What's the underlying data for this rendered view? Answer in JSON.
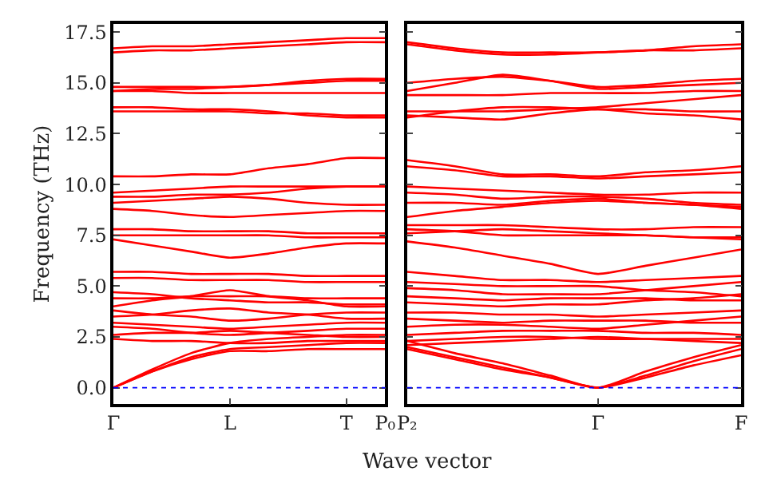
{
  "chart_data": [
    {
      "type": "line",
      "ylabel": "Frequency (THz)",
      "xlabel": "Wave vector",
      "ylim": [
        -0.8,
        17.9
      ],
      "tick_labels": "xy",
      "line_style": "solid",
      "marker": "none",
      "categories": [
        "Γ",
        null,
        null,
        "L",
        null,
        null,
        "T",
        "P₀"
      ],
      "yticks": [
        {
          "value": 0,
          "label": "0.0"
        },
        {
          "value": 2.5,
          "label": "2.5"
        },
        {
          "value": 5,
          "label": "5.0"
        },
        {
          "value": 7.5,
          "label": "7.5"
        },
        {
          "value": 10,
          "label": "10.0"
        },
        {
          "value": 12.5,
          "label": "12.5"
        },
        {
          "value": 15,
          "label": "15.0"
        },
        {
          "value": 17.5,
          "label": "17.5"
        }
      ],
      "ref_lines": [
        {
          "axis": "y",
          "value": 0,
          "label": null,
          "color": "#0000ff",
          "line_style": "dotted"
        }
      ],
      "series": [
        {
          "color": "#ff0000",
          "values": [
            16.5,
            16.6,
            16.6,
            16.7,
            16.8,
            16.9,
            17.0,
            17.0
          ]
        },
        {
          "color": "#ff0000",
          "values": [
            16.7,
            16.8,
            16.8,
            16.9,
            17.0,
            17.1,
            17.2,
            17.2
          ]
        },
        {
          "color": "#ff0000",
          "values": [
            14.8,
            14.8,
            14.8,
            14.8,
            14.9,
            15.1,
            15.2,
            15.2
          ]
        },
        {
          "color": "#ff0000",
          "values": [
            14.6,
            14.7,
            14.7,
            14.8,
            14.9,
            15.0,
            15.1,
            15.1
          ]
        },
        {
          "color": "#ff0000",
          "values": [
            14.6,
            14.6,
            14.5,
            14.5,
            14.5,
            14.5,
            14.5,
            14.5
          ]
        },
        {
          "color": "#ff0000",
          "values": [
            13.8,
            13.8,
            13.7,
            13.7,
            13.6,
            13.4,
            13.3,
            13.3
          ]
        },
        {
          "color": "#ff0000",
          "values": [
            13.6,
            13.6,
            13.6,
            13.6,
            13.5,
            13.5,
            13.4,
            13.4
          ]
        },
        {
          "color": "#ff0000",
          "values": [
            10.4,
            10.4,
            10.5,
            10.5,
            10.8,
            11.0,
            11.3,
            11.3
          ]
        },
        {
          "color": "#ff0000",
          "values": [
            9.6,
            9.7,
            9.8,
            9.9,
            9.9,
            9.9,
            9.9,
            9.9
          ]
        },
        {
          "color": "#ff0000",
          "values": [
            9.4,
            9.4,
            9.5,
            9.5,
            9.6,
            9.8,
            9.9,
            9.9
          ]
        },
        {
          "color": "#ff0000",
          "values": [
            9.1,
            9.2,
            9.3,
            9.4,
            9.3,
            9.1,
            9.0,
            9.0
          ]
        },
        {
          "color": "#ff0000",
          "values": [
            8.8,
            8.7,
            8.5,
            8.4,
            8.5,
            8.6,
            8.7,
            8.7
          ]
        },
        {
          "color": "#ff0000",
          "values": [
            7.8,
            7.8,
            7.7,
            7.7,
            7.7,
            7.6,
            7.6,
            7.6
          ]
        },
        {
          "color": "#ff0000",
          "values": [
            7.5,
            7.5,
            7.5,
            7.5,
            7.5,
            7.4,
            7.4,
            7.4
          ]
        },
        {
          "color": "#ff0000",
          "values": [
            7.3,
            7.0,
            6.7,
            6.4,
            6.6,
            6.9,
            7.1,
            7.1
          ]
        },
        {
          "color": "#ff0000",
          "values": [
            5.7,
            5.7,
            5.6,
            5.6,
            5.6,
            5.5,
            5.5,
            5.5
          ]
        },
        {
          "color": "#ff0000",
          "values": [
            5.4,
            5.4,
            5.3,
            5.3,
            5.3,
            5.2,
            5.2,
            5.2
          ]
        },
        {
          "color": "#ff0000",
          "values": [
            4.7,
            4.6,
            4.4,
            4.3,
            4.2,
            4.2,
            4.1,
            4.1
          ]
        },
        {
          "color": "#ff0000",
          "values": [
            4.4,
            4.4,
            4.5,
            4.5,
            4.5,
            4.4,
            4.4,
            4.4
          ]
        },
        {
          "color": "#ff0000",
          "values": [
            4.0,
            4.3,
            4.5,
            4.8,
            4.5,
            4.3,
            4.0,
            4.0
          ]
        },
        {
          "color": "#ff0000",
          "values": [
            3.8,
            3.6,
            3.5,
            3.3,
            3.4,
            3.6,
            3.7,
            3.7
          ]
        },
        {
          "color": "#ff0000",
          "values": [
            3.5,
            3.6,
            3.8,
            3.9,
            3.7,
            3.6,
            3.4,
            3.4
          ]
        },
        {
          "color": "#ff0000",
          "values": [
            3.2,
            3.1,
            3.0,
            2.9,
            3.0,
            3.1,
            3.2,
            3.2
          ]
        },
        {
          "color": "#ff0000",
          "values": [
            3.0,
            2.9,
            2.7,
            2.6,
            2.7,
            2.8,
            2.9,
            2.9
          ]
        },
        {
          "color": "#ff0000",
          "values": [
            2.6,
            2.7,
            2.7,
            2.8,
            2.7,
            2.6,
            2.5,
            2.5
          ]
        },
        {
          "color": "#ff0000",
          "values": [
            2.4,
            2.3,
            2.3,
            2.2,
            2.2,
            2.3,
            2.3,
            2.3
          ]
        },
        {
          "color": "#ff0000",
          "values": [
            0,
            0.8,
            1.4,
            1.8,
            1.8,
            1.9,
            1.9,
            1.9
          ]
        },
        {
          "color": "#ff0000",
          "values": [
            0,
            0.8,
            1.5,
            1.9,
            2.0,
            2.1,
            2.2,
            2.2
          ]
        },
        {
          "color": "#ff0000",
          "values": [
            0,
            0.9,
            1.7,
            2.2,
            2.4,
            2.5,
            2.6,
            2.6
          ]
        }
      ]
    },
    {
      "type": "line",
      "ylim": [
        -0.8,
        17.9
      ],
      "tick_labels": "x",
      "line_style": "solid",
      "marker": "none",
      "categories": [
        "P₂",
        null,
        null,
        null,
        "Γ",
        null,
        null,
        "F"
      ],
      "yticks": [
        {
          "value": 0,
          "label": null
        },
        {
          "value": 2.5,
          "label": null
        },
        {
          "value": 5,
          "label": null
        },
        {
          "value": 7.5,
          "label": null
        },
        {
          "value": 10,
          "label": null
        },
        {
          "value": 12.5,
          "label": null
        },
        {
          "value": 15,
          "label": null
        },
        {
          "value": 17.5,
          "label": null
        }
      ],
      "ref_lines": [
        {
          "axis": "y",
          "value": 0,
          "label": null,
          "color": "#0000ff",
          "line_style": "dotted"
        }
      ],
      "series": [
        {
          "color": "#ff0000",
          "values": [
            17.0,
            16.7,
            16.5,
            16.5,
            16.5,
            16.6,
            16.6,
            16.7
          ]
        },
        {
          "color": "#ff0000",
          "values": [
            16.9,
            16.6,
            16.4,
            16.4,
            16.5,
            16.6,
            16.8,
            16.9
          ]
        },
        {
          "color": "#ff0000",
          "values": [
            15.0,
            15.2,
            15.3,
            15.1,
            14.8,
            14.9,
            15.1,
            15.2
          ]
        },
        {
          "color": "#ff0000",
          "values": [
            14.6,
            15.0,
            15.4,
            15.1,
            14.7,
            14.8,
            14.9,
            15.0
          ]
        },
        {
          "color": "#ff0000",
          "values": [
            14.4,
            14.4,
            14.4,
            14.5,
            14.5,
            14.5,
            14.6,
            14.6
          ]
        },
        {
          "color": "#ff0000",
          "values": [
            13.6,
            13.6,
            13.6,
            13.7,
            13.8,
            14.0,
            14.2,
            14.4
          ]
        },
        {
          "color": "#ff0000",
          "values": [
            13.4,
            13.3,
            13.2,
            13.5,
            13.7,
            13.5,
            13.4,
            13.2
          ]
        },
        {
          "color": "#ff0000",
          "values": [
            13.3,
            13.6,
            13.8,
            13.8,
            13.7,
            13.7,
            13.6,
            13.6
          ]
        },
        {
          "color": "#ff0000",
          "values": [
            11.2,
            10.9,
            10.5,
            10.5,
            10.4,
            10.6,
            10.7,
            10.9
          ]
        },
        {
          "color": "#ff0000",
          "values": [
            10.9,
            10.7,
            10.4,
            10.4,
            10.3,
            10.4,
            10.5,
            10.6
          ]
        },
        {
          "color": "#ff0000",
          "values": [
            9.9,
            9.8,
            9.7,
            9.6,
            9.5,
            9.5,
            9.6,
            9.6
          ]
        },
        {
          "color": "#ff0000",
          "values": [
            9.6,
            9.5,
            9.3,
            9.4,
            9.4,
            9.3,
            9.1,
            9.0
          ]
        },
        {
          "color": "#ff0000",
          "values": [
            9.1,
            9.1,
            9.0,
            9.2,
            9.3,
            9.1,
            9.0,
            8.8
          ]
        },
        {
          "color": "#ff0000",
          "values": [
            8.4,
            8.7,
            8.9,
            9.1,
            9.2,
            9.1,
            9.0,
            8.9
          ]
        },
        {
          "color": "#ff0000",
          "values": [
            8.0,
            8.0,
            8.0,
            7.9,
            7.8,
            7.8,
            7.9,
            7.9
          ]
        },
        {
          "color": "#ff0000",
          "values": [
            7.8,
            7.7,
            7.5,
            7.5,
            7.5,
            7.5,
            7.4,
            7.4
          ]
        },
        {
          "color": "#ff0000",
          "values": [
            7.6,
            7.7,
            7.8,
            7.7,
            7.6,
            7.5,
            7.4,
            7.3
          ]
        },
        {
          "color": "#ff0000",
          "values": [
            7.2,
            6.9,
            6.5,
            6.1,
            5.6,
            6.0,
            6.4,
            6.8
          ]
        },
        {
          "color": "#ff0000",
          "values": [
            5.7,
            5.5,
            5.3,
            5.3,
            5.2,
            5.3,
            5.4,
            5.5
          ]
        },
        {
          "color": "#ff0000",
          "values": [
            5.2,
            5.1,
            5.0,
            5.0,
            5.0,
            4.8,
            4.7,
            4.5
          ]
        },
        {
          "color": "#ff0000",
          "values": [
            4.9,
            4.8,
            4.6,
            4.6,
            4.6,
            4.8,
            5.0,
            5.2
          ]
        },
        {
          "color": "#ff0000",
          "values": [
            4.5,
            4.4,
            4.3,
            4.4,
            4.4,
            4.4,
            4.3,
            4.3
          ]
        },
        {
          "color": "#ff0000",
          "values": [
            4.2,
            4.1,
            4.0,
            4.1,
            4.1,
            4.3,
            4.4,
            4.6
          ]
        },
        {
          "color": "#ff0000",
          "values": [
            3.7,
            3.7,
            3.6,
            3.6,
            3.5,
            3.6,
            3.7,
            3.8
          ]
        },
        {
          "color": "#ff0000",
          "values": [
            3.4,
            3.3,
            3.2,
            3.3,
            3.3,
            3.3,
            3.2,
            3.2
          ]
        },
        {
          "color": "#ff0000",
          "values": [
            3.0,
            3.1,
            3.1,
            3.0,
            2.9,
            3.1,
            3.3,
            3.5
          ]
        },
        {
          "color": "#ff0000",
          "values": [
            2.6,
            2.7,
            2.8,
            2.8,
            2.8,
            2.7,
            2.7,
            2.6
          ]
        },
        {
          "color": "#ff0000",
          "values": [
            2.3,
            2.4,
            2.5,
            2.5,
            2.4,
            2.4,
            2.4,
            2.4
          ]
        },
        {
          "color": "#ff0000",
          "values": [
            2.1,
            2.2,
            2.3,
            2.4,
            2.5,
            2.4,
            2.3,
            2.2
          ]
        },
        {
          "color": "#ff0000",
          "values": [
            2.3,
            1.7,
            1.2,
            0.6,
            0,
            0.8,
            1.5,
            2.1
          ]
        },
        {
          "color": "#ff0000",
          "values": [
            2.0,
            1.5,
            1.0,
            0.5,
            0,
            0.6,
            1.3,
            1.9
          ]
        },
        {
          "color": "#ff0000",
          "values": [
            1.9,
            1.4,
            0.9,
            0.5,
            0,
            0.5,
            1.1,
            1.6
          ]
        }
      ]
    }
  ]
}
